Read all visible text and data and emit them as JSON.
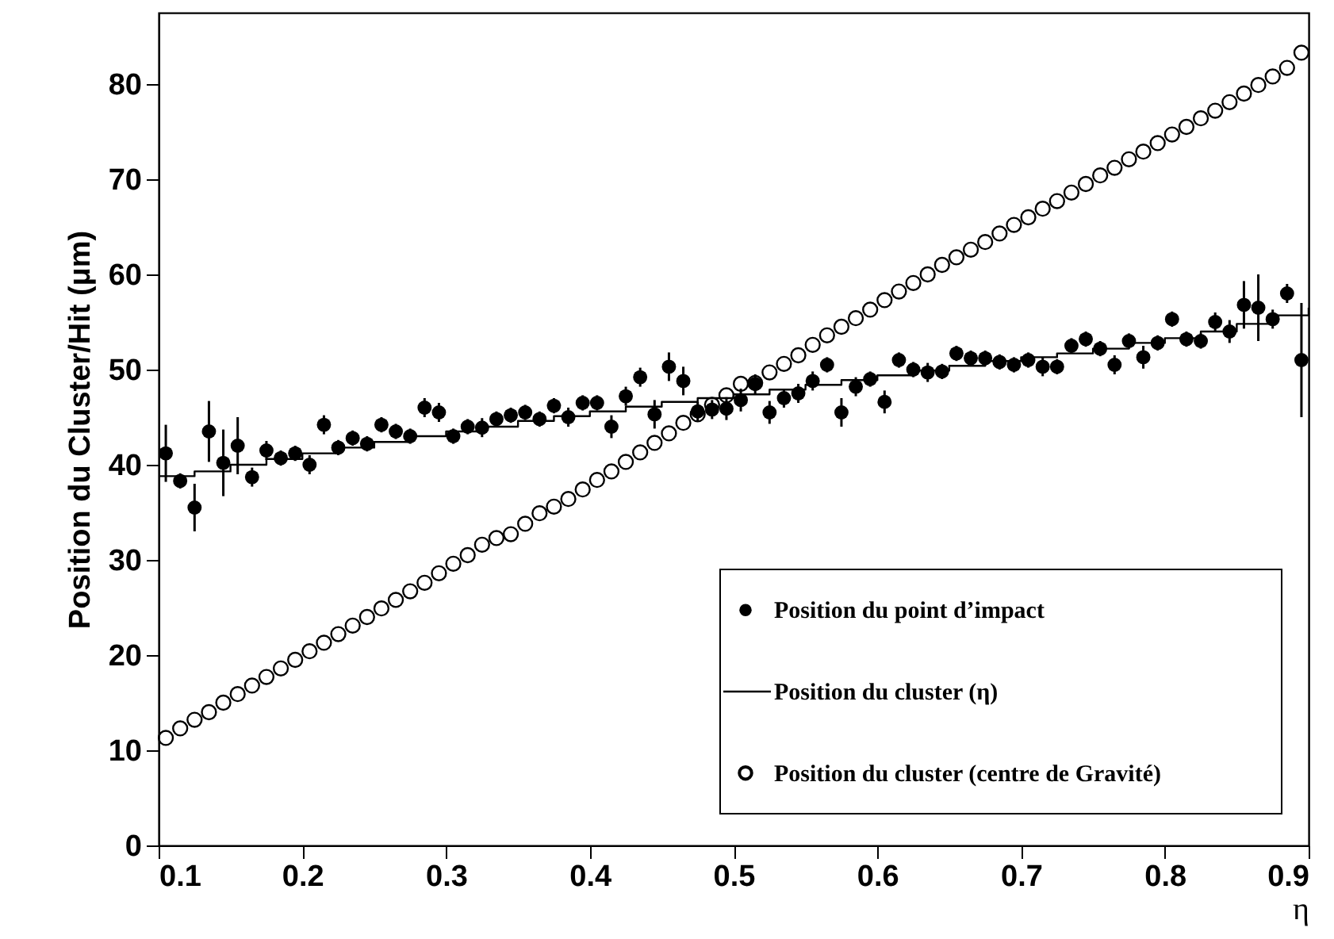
{
  "chart_data": {
    "type": "scatter",
    "xlabel": "η",
    "ylabel": "Position du Cluster/Hit (μm)",
    "xlim": [
      0.1,
      0.9
    ],
    "xticks": [
      0.1,
      0.2,
      0.3,
      0.4,
      0.5,
      0.6,
      0.7,
      0.8,
      0.9
    ],
    "ylim": [
      0,
      87.5
    ],
    "yticks": [
      0,
      10,
      20,
      30,
      40,
      50,
      60,
      70,
      80
    ],
    "legend": "bottom right",
    "grid": false,
    "series": [
      {
        "name": "Position du point d’impact",
        "marker": "circle",
        "color": "#000000",
        "x": [
          0.105,
          0.115,
          0.125,
          0.135,
          0.145,
          0.155,
          0.165,
          0.175,
          0.185,
          0.195,
          0.205,
          0.215,
          0.225,
          0.235,
          0.245,
          0.255,
          0.265,
          0.275,
          0.285,
          0.295,
          0.305,
          0.315,
          0.325,
          0.335,
          0.345,
          0.355,
          0.365,
          0.375,
          0.385,
          0.395,
          0.405,
          0.415,
          0.425,
          0.435,
          0.445,
          0.455,
          0.465,
          0.475,
          0.485,
          0.495,
          0.505,
          0.515,
          0.525,
          0.535,
          0.545,
          0.555,
          0.565,
          0.575,
          0.585,
          0.595,
          0.605,
          0.615,
          0.625,
          0.635,
          0.645,
          0.655,
          0.665,
          0.675,
          0.685,
          0.695,
          0.705,
          0.715,
          0.725,
          0.735,
          0.745,
          0.755,
          0.765,
          0.775,
          0.785,
          0.795,
          0.805,
          0.815,
          0.825,
          0.835,
          0.845,
          0.855,
          0.865,
          0.875,
          0.885,
          0.895
        ],
        "values": [
          41.2,
          38.3,
          35.5,
          43.5,
          40.2,
          42,
          38.7,
          41.5,
          40.7,
          41.2,
          40,
          44.2,
          41.8,
          42.8,
          42.2,
          44.2,
          43.5,
          43,
          46,
          45.5,
          43,
          44,
          43.9,
          44.8,
          45.2,
          45.5,
          44.8,
          46.2,
          45,
          46.5,
          46.5,
          44,
          47.2,
          49.2,
          45.3,
          50.3,
          48.8,
          45.6,
          45.8,
          45.9,
          46.8,
          48.5,
          45.5,
          47,
          47.5,
          48.8,
          50.5,
          45.5,
          48.2,
          49,
          46.6,
          51,
          50,
          49.7,
          49.8,
          51.7,
          51.2,
          51.2,
          50.8,
          50.5,
          51,
          50.3,
          50.3,
          52.5,
          53.2,
          52.2,
          50.5,
          53,
          51.3,
          52.8,
          55.3,
          53.2,
          53,
          55,
          54,
          56.8,
          56.5,
          55.3,
          58,
          51
        ],
        "errors": [
          3,
          0.8,
          2.5,
          3.2,
          3.5,
          3,
          1,
          1,
          0.8,
          0.8,
          1,
          1,
          0.8,
          0.8,
          0.8,
          0.8,
          0.8,
          0.8,
          1,
          1,
          0.8,
          0.8,
          1,
          0.8,
          0.8,
          0.8,
          0.8,
          0.8,
          1,
          0.8,
          0.8,
          1.2,
          1,
          1,
          1.5,
          1.5,
          1.5,
          1,
          1,
          1.2,
          1.2,
          1,
          1.2,
          1,
          1,
          1,
          0.8,
          1.5,
          1,
          0.8,
          1.2,
          0.8,
          0.8,
          1,
          0.8,
          0.8,
          0.8,
          0.8,
          0.8,
          0.8,
          0.8,
          1,
          0.8,
          0.8,
          0.8,
          0.8,
          1,
          0.8,
          1.2,
          0.8,
          0.8,
          0.8,
          0.8,
          1,
          1.2,
          2.5,
          3.5,
          1,
          1,
          6
        ]
      },
      {
        "name": "Position du cluster (η)",
        "type": "step",
        "marker": "none",
        "color": "#000000",
        "x": [
          0.1,
          0.125,
          0.15,
          0.175,
          0.2,
          0.225,
          0.25,
          0.275,
          0.3,
          0.325,
          0.35,
          0.375,
          0.4,
          0.425,
          0.45,
          0.475,
          0.5,
          0.525,
          0.55,
          0.575,
          0.6,
          0.625,
          0.65,
          0.675,
          0.7,
          0.725,
          0.75,
          0.775,
          0.8,
          0.825,
          0.85,
          0.875,
          0.9
        ],
        "values": [
          38.8,
          39.3,
          40,
          40.6,
          41.2,
          41.8,
          42.4,
          43,
          43.5,
          44,
          44.6,
          45.1,
          45.6,
          46.1,
          46.6,
          47,
          47.4,
          47.9,
          48.4,
          48.9,
          49.4,
          49.9,
          50.4,
          50.9,
          51.3,
          51.7,
          52.2,
          52.8,
          53.3,
          54,
          54.8,
          55.7,
          56.5
        ]
      },
      {
        "name": "Position du cluster (centre de Gravité)",
        "marker": "circle",
        "color": "#000000",
        "x": [
          0.105,
          0.115,
          0.125,
          0.135,
          0.145,
          0.155,
          0.165,
          0.175,
          0.185,
          0.195,
          0.205,
          0.215,
          0.225,
          0.235,
          0.245,
          0.255,
          0.265,
          0.275,
          0.285,
          0.295,
          0.305,
          0.315,
          0.325,
          0.335,
          0.345,
          0.355,
          0.365,
          0.375,
          0.385,
          0.395,
          0.405,
          0.415,
          0.425,
          0.435,
          0.445,
          0.455,
          0.465,
          0.475,
          0.485,
          0.495,
          0.505,
          0.515,
          0.525,
          0.535,
          0.545,
          0.555,
          0.565,
          0.575,
          0.585,
          0.595,
          0.605,
          0.615,
          0.625,
          0.635,
          0.645,
          0.655,
          0.665,
          0.675,
          0.685,
          0.695,
          0.705,
          0.715,
          0.725,
          0.735,
          0.745,
          0.755,
          0.765,
          0.775,
          0.785,
          0.795,
          0.805,
          0.815,
          0.825,
          0.835,
          0.845,
          0.855,
          0.865,
          0.875,
          0.885,
          0.895
        ],
        "values": [
          11.3,
          12.3,
          13.2,
          14.0,
          15.0,
          15.9,
          16.8,
          17.7,
          18.6,
          19.5,
          20.4,
          21.3,
          22.2,
          23.1,
          24.0,
          24.9,
          25.8,
          26.7,
          27.6,
          28.6,
          29.6,
          30.5,
          31.6,
          32.3,
          32.7,
          33.8,
          34.9,
          35.6,
          36.4,
          37.4,
          38.4,
          39.3,
          40.3,
          41.3,
          42.3,
          43.3,
          44.4,
          45.3,
          46.3,
          47.3,
          48.5,
          48.6,
          49.7,
          50.6,
          51.5,
          52.6,
          53.6,
          54.5,
          55.4,
          56.3,
          57.3,
          58.2,
          59.1,
          60.0,
          61.0,
          61.8,
          62.6,
          63.4,
          64.3,
          65.2,
          66.0,
          66.9,
          67.7,
          68.6,
          69.5,
          70.4,
          71.2,
          72.1,
          72.9,
          73.8,
          74.7,
          75.5,
          76.4,
          77.2,
          78.1,
          79.0,
          79.9,
          80.8,
          81.7,
          83.3
        ]
      }
    ]
  }
}
